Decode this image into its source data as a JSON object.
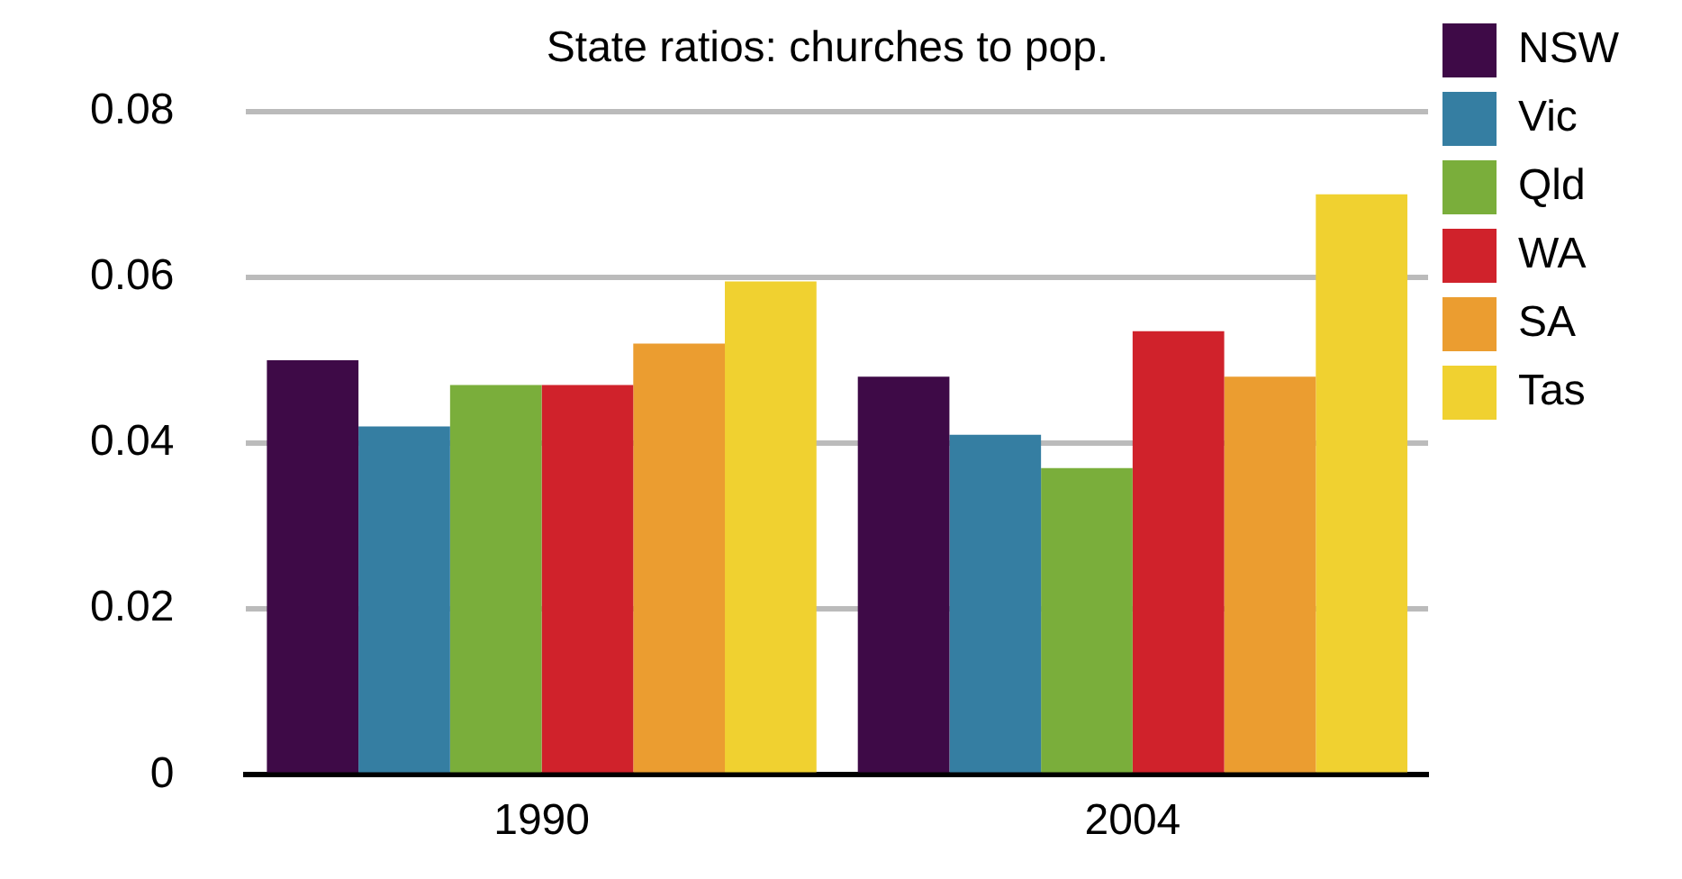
{
  "chart_data": {
    "type": "bar",
    "title": "State ratios: churches to pop.",
    "categories": [
      "1990",
      "2004"
    ],
    "series": [
      {
        "name": "NSW",
        "color": "#3e0a47",
        "values": [
          0.05,
          0.048
        ]
      },
      {
        "name": "Vic",
        "color": "#357ea2",
        "values": [
          0.042,
          0.041
        ]
      },
      {
        "name": "Qld",
        "color": "#7aae3b",
        "values": [
          0.047,
          0.037
        ]
      },
      {
        "name": "WA",
        "color": "#d0222b",
        "values": [
          0.047,
          0.0535
        ]
      },
      {
        "name": "SA",
        "color": "#eb9d30",
        "values": [
          0.052,
          0.048
        ]
      },
      {
        "name": "Tas",
        "color": "#f0d130",
        "values": [
          0.0595,
          0.07
        ]
      }
    ],
    "ylim": [
      0,
      0.08
    ],
    "yticks": [
      0,
      0.02,
      0.04,
      0.06,
      0.08
    ],
    "grid": "y",
    "legend": "top right"
  }
}
